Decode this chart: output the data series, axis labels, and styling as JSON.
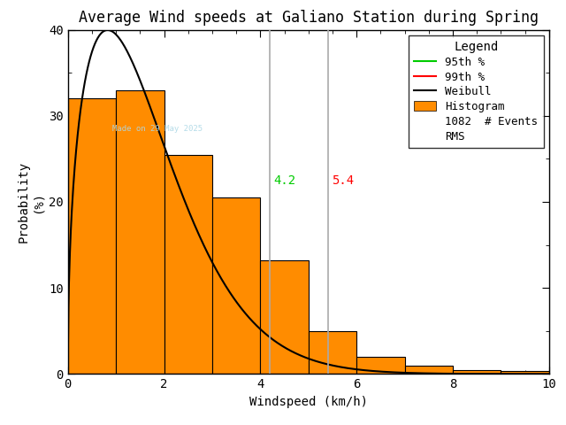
{
  "title": "Average Wind speeds at Galiano Station during Spring",
  "xlabel": "Windspeed (km/h)",
  "ylabel": "Probability\n(%)",
  "xlim": [
    0,
    10
  ],
  "ylim": [
    0,
    40
  ],
  "xticks": [
    0,
    2,
    4,
    6,
    8,
    10
  ],
  "yticks": [
    0,
    10,
    20,
    30,
    40
  ],
  "bar_edges": [
    0,
    1,
    2,
    3,
    4,
    5,
    6,
    7,
    8,
    9,
    10
  ],
  "bar_heights": [
    32.0,
    33.0,
    25.5,
    20.5,
    13.2,
    5.0,
    2.0,
    1.0,
    0.5,
    0.3
  ],
  "bar_color": "#FF8C00",
  "bar_edgecolor": "#000000",
  "weibull_k": 1.45,
  "weibull_lambda": 1.85,
  "percentile_95": 4.2,
  "percentile_99": 5.4,
  "percentile_95_color_line": "#AAAAAA",
  "percentile_99_color_line": "#AAAAAA",
  "percentile_95_color_label": "#00CC00",
  "percentile_99_color_label": "#FF0000",
  "percentile_95_color_legend": "#00CC00",
  "percentile_99_color_legend": "#FF0000",
  "weibull_color": "#000000",
  "n_events": 1082,
  "watermark": "Made on 29 May 2025",
  "watermark_color": "#ADD8E6",
  "background_color": "#FFFFFF",
  "legend_title": "Legend",
  "title_fontsize": 12,
  "axis_fontsize": 10,
  "tick_fontsize": 10,
  "font_family": "monospace"
}
